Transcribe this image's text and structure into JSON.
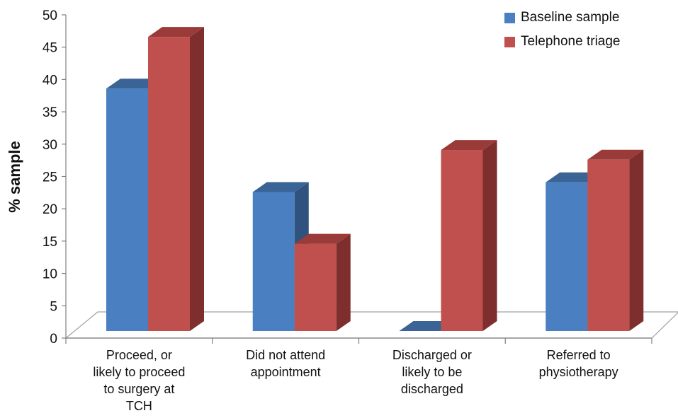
{
  "chart_data": {
    "type": "bar",
    "title": "",
    "xlabel": "",
    "ylabel": "% sample",
    "ylim": [
      0,
      50
    ],
    "yticks": [
      "0",
      "5",
      "10",
      "15",
      "20",
      "25",
      "30",
      "35",
      "40",
      "45",
      "50"
    ],
    "categories": [
      [
        "Proceed, or",
        "likely to proceed",
        "to surgery at",
        "TCH"
      ],
      [
        "Did not attend",
        "appointment"
      ],
      [
        "Discharged or",
        "likely to be",
        "discharged"
      ],
      [
        "Referred to",
        "physiotherapy"
      ]
    ],
    "series": [
      {
        "name": "Baseline sample",
        "values": [
          37.5,
          21.5,
          0,
          23
        ],
        "color": "#4a7fc1",
        "side_color": "#2f527e",
        "top_color": "#3a6396"
      },
      {
        "name": "Telephone triage",
        "values": [
          45.5,
          13.5,
          28,
          26.5
        ],
        "color": "#c0504d",
        "side_color": "#7e2e2d",
        "top_color": "#9a3b39"
      }
    ],
    "legend": "top-right",
    "grid": false
  }
}
